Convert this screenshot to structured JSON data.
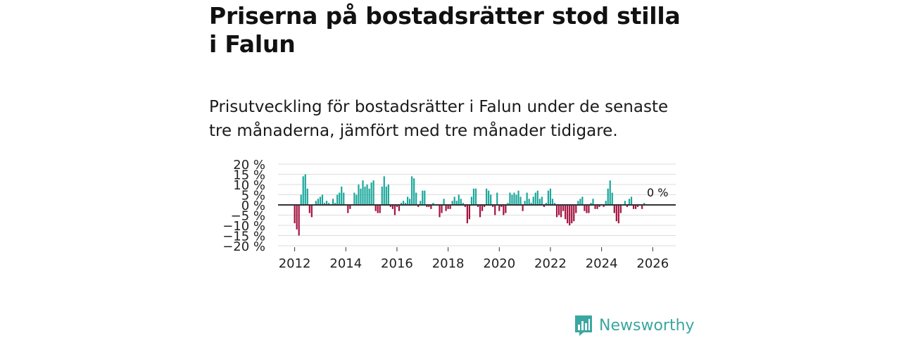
{
  "header": {
    "title": "Priserna på bostadsrätter stod stilla i Falun",
    "subtitle": "Prisutveckling för bostadsrätter i Falun under de senaste tre månaderna, jämfört med tre månader tidigare."
  },
  "brand": {
    "name": "Newsworthy",
    "icon": "newsworthy-logo-icon"
  },
  "colors": {
    "positive": "#1ba79c",
    "negative": "#a3123f",
    "grid": "#dddddd",
    "axis": "#333333",
    "brand": "#3aa7a0"
  },
  "chart_data": {
    "type": "bar",
    "title": "",
    "xlabel": "",
    "ylabel": "",
    "ylim": [
      -20,
      20
    ],
    "y_ticks": [
      20,
      15,
      10,
      5,
      0,
      -5,
      -10,
      -15,
      -20
    ],
    "y_tick_labels": [
      "20 %",
      "15 %",
      "10 %",
      "5 %",
      "0 %",
      "−5 %",
      "−10 %",
      "−15 %",
      "−20 %"
    ],
    "x_ticks": [
      2012,
      2014,
      2016,
      2018,
      2020,
      2022,
      2024,
      2026
    ],
    "x_tick_labels": [
      "2012",
      "2014",
      "2016",
      "2018",
      "2020",
      "2022",
      "2024",
      "2026"
    ],
    "annotation": "0 %",
    "start": 2012.0,
    "step": 0.0833333,
    "values": [
      -9,
      -12,
      -15,
      5,
      14,
      15,
      8,
      -4,
      -6,
      0,
      2,
      3,
      4,
      5,
      1,
      2,
      1,
      0,
      3,
      1,
      5,
      6,
      9,
      6,
      0,
      -4,
      -2,
      0,
      6,
      5,
      10,
      8,
      12,
      9,
      10,
      8,
      11,
      12,
      -3,
      -4,
      -4,
      9,
      14,
      9,
      10,
      -1,
      -2,
      -5,
      -1,
      -3,
      1,
      2,
      1,
      4,
      3,
      14,
      13,
      6,
      -1,
      2,
      7,
      7,
      -1,
      -1,
      -2,
      1,
      0,
      0,
      -6,
      -4,
      3,
      -3,
      -2,
      -2,
      2,
      4,
      2,
      5,
      3,
      1,
      -1,
      -9,
      -7,
      4,
      8,
      8,
      -1,
      -6,
      -3,
      -1,
      8,
      7,
      5,
      -1,
      -5,
      6,
      -3,
      -1,
      -5,
      -4,
      1,
      6,
      5,
      6,
      5,
      7,
      4,
      -3,
      2,
      6,
      3,
      1,
      4,
      6,
      7,
      3,
      4,
      -1,
      1,
      7,
      8,
      3,
      1,
      -6,
      -5,
      -6,
      -3,
      -7,
      -9,
      -10,
      -9,
      -8,
      -4,
      2,
      3,
      4,
      -3,
      -4,
      -4,
      1,
      3,
      -2,
      -2,
      -1,
      0,
      -1,
      2,
      8,
      12,
      6,
      -4,
      -8,
      -9,
      -4,
      0,
      2,
      -1,
      3,
      4,
      -2,
      -2,
      -1,
      0,
      -2,
      1
    ]
  }
}
